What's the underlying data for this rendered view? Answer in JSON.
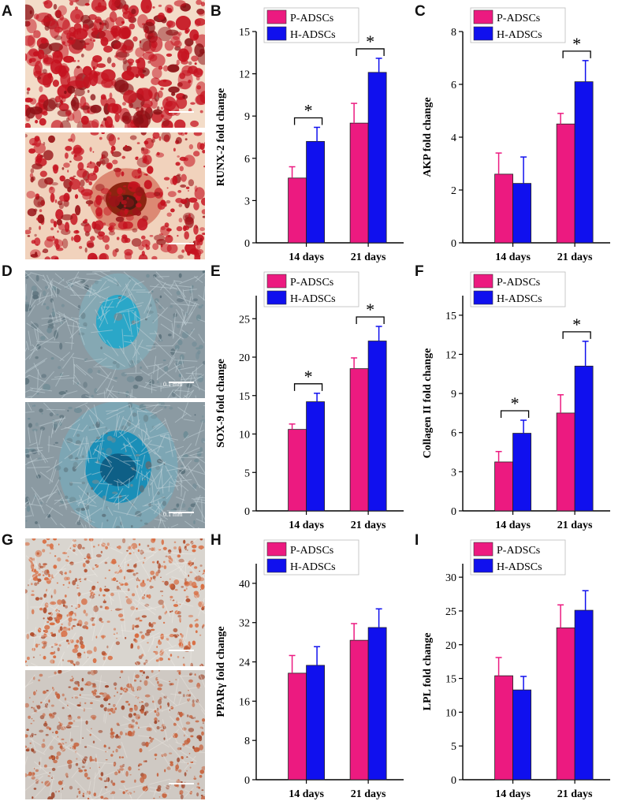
{
  "panel_labels": {
    "A": "A",
    "B": "B",
    "C": "C",
    "D": "D",
    "E": "E",
    "F": "F",
    "G": "G",
    "H": "H",
    "I": "I"
  },
  "images": {
    "D_top_scale": "0.1 mm",
    "D_bottom_scale": "0.1 mm"
  },
  "colors": {
    "p_adscs": "#ec1a80",
    "h_adscs": "#1010ee",
    "alizarin_bg": "#f3dcc8",
    "alizarin_stain": "#c5121f",
    "alcian_bg": "#8b9aa2",
    "alcian_stain": "#2aa7c8",
    "oil_red_bg": "#d9d5cf",
    "oil_red_stain": "#d86a3e"
  },
  "chart_data": [
    {
      "id": "B",
      "type": "bar",
      "title": "",
      "ylabel": "RUNX-2 fold change",
      "xlabel": "",
      "categories": [
        "14 days",
        "21 days"
      ],
      "ylim": [
        0,
        15
      ],
      "yticks": [
        "0",
        "3",
        "6",
        "9",
        "12",
        "15"
      ],
      "series": [
        {
          "name": "P-ADSCs",
          "values": [
            4.6,
            8.5
          ],
          "errors": [
            0.8,
            1.4
          ]
        },
        {
          "name": "H-ADSCs",
          "values": [
            7.2,
            12.1
          ],
          "errors": [
            1.0,
            1.0
          ]
        }
      ],
      "significance": [
        "*",
        "*"
      ],
      "legend": [
        "P-ADSCs",
        "H-ADSCs"
      ]
    },
    {
      "id": "C",
      "type": "bar",
      "title": "",
      "ylabel": "AKP fold change",
      "xlabel": "",
      "categories": [
        "14 days",
        "21 days"
      ],
      "ylim": [
        0,
        8
      ],
      "yticks": [
        "0",
        "2",
        "4",
        "6",
        "8"
      ],
      "series": [
        {
          "name": "P-ADSCs",
          "values": [
            2.6,
            4.5
          ],
          "errors": [
            0.8,
            0.4
          ]
        },
        {
          "name": "H-ADSCs",
          "values": [
            2.25,
            6.1
          ],
          "errors": [
            1.0,
            0.8
          ]
        }
      ],
      "significance": [
        "",
        "*"
      ],
      "legend": [
        "P-ADSCs",
        "H-ADSCs"
      ]
    },
    {
      "id": "E",
      "type": "bar",
      "title": "",
      "ylabel": "SOX-9 fold change",
      "xlabel": "",
      "categories": [
        "14 days",
        "21 days"
      ],
      "ylim": [
        0,
        28
      ],
      "yticks": [
        "0",
        "5",
        "10",
        "15",
        "20",
        "25"
      ],
      "series": [
        {
          "name": "P-ADSCs",
          "values": [
            10.6,
            18.5
          ],
          "errors": [
            0.7,
            1.4
          ]
        },
        {
          "name": "H-ADSCs",
          "values": [
            14.2,
            22.1
          ],
          "errors": [
            1.1,
            1.9
          ]
        }
      ],
      "significance": [
        "*",
        "*"
      ],
      "legend": [
        "P-ADSCs",
        "H-ADSCs"
      ]
    },
    {
      "id": "F",
      "type": "bar",
      "title": "",
      "ylabel": "Collagen II fold change",
      "xlabel": "",
      "categories": [
        "14 days",
        "21 days"
      ],
      "ylim": [
        0,
        16.5
      ],
      "yticks": [
        "0",
        "3",
        "6",
        "9",
        "12",
        "15"
      ],
      "series": [
        {
          "name": "P-ADSCs",
          "values": [
            3.75,
            7.5
          ],
          "errors": [
            0.8,
            1.4
          ]
        },
        {
          "name": "H-ADSCs",
          "values": [
            5.95,
            11.1
          ],
          "errors": [
            1.0,
            1.9
          ]
        }
      ],
      "significance": [
        "*",
        "*"
      ],
      "legend": [
        "P-ADSCs",
        "H-ADSCs"
      ]
    },
    {
      "id": "H",
      "type": "bar",
      "title": "",
      "ylabel": "PPARγ fold change",
      "xlabel": "",
      "categories": [
        "14 days",
        "21 days"
      ],
      "ylim": [
        0,
        44
      ],
      "yticks": [
        "0",
        "8",
        "16",
        "24",
        "32",
        "40"
      ],
      "series": [
        {
          "name": "P-ADSCs",
          "values": [
            21.7,
            28.4
          ],
          "errors": [
            3.6,
            3.4
          ]
        },
        {
          "name": "H-ADSCs",
          "values": [
            23.3,
            31.0
          ],
          "errors": [
            3.8,
            3.8
          ]
        }
      ],
      "significance": [
        "",
        ""
      ],
      "legend": [
        "P-ADSCs",
        "H-ADSCs"
      ]
    },
    {
      "id": "I",
      "type": "bar",
      "title": "",
      "ylabel": "LPL fold change",
      "xlabel": "",
      "categories": [
        "14 days",
        "21 days"
      ],
      "ylim": [
        0,
        32
      ],
      "yticks": [
        "0",
        "5",
        "10",
        "15",
        "20",
        "25",
        "30"
      ],
      "series": [
        {
          "name": "P-ADSCs",
          "values": [
            15.4,
            22.5
          ],
          "errors": [
            2.7,
            3.4
          ]
        },
        {
          "name": "H-ADSCs",
          "values": [
            13.3,
            25.1
          ],
          "errors": [
            2.0,
            2.9
          ]
        }
      ],
      "significance": [
        "",
        ""
      ],
      "legend": [
        "P-ADSCs",
        "H-ADSCs"
      ]
    }
  ]
}
